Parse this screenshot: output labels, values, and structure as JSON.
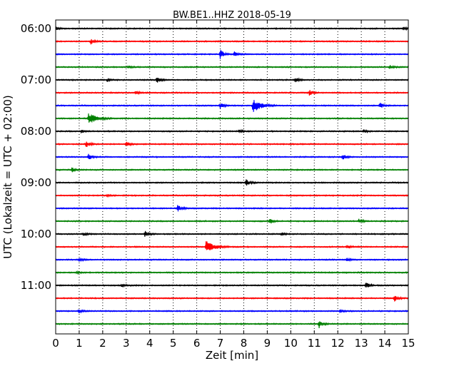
{
  "chart_data": {
    "type": "line",
    "title": "BW.BE1..HHZ 2018-05-19",
    "xlabel": "Zeit  [min]",
    "ylabel": "UTC (Lokalzeit = UTC + 02:00)",
    "xlim": [
      0,
      15
    ],
    "x_ticks": [
      "0",
      "1",
      "2",
      "3",
      "4",
      "5",
      "6",
      "7",
      "8",
      "9",
      "10",
      "11",
      "12",
      "13",
      "14",
      "15"
    ],
    "y_ticks": [
      "06:00",
      "07:00",
      "08:00",
      "09:00",
      "10:00",
      "11:00"
    ],
    "y_tick_rows": [
      0,
      4,
      8,
      12,
      16,
      20
    ],
    "grid": "x-dotted",
    "row_interval_minutes": 15,
    "row_colors": [
      "#000000",
      "#ff0000",
      "#0000ff",
      "#008000"
    ],
    "series": [
      {
        "values": [
          [
            0,
            0.3
          ],
          [
            14.8,
            0.3
          ]
        ]
      },
      {
        "values": [
          [
            1.5,
            0.5
          ]
        ]
      },
      {
        "values": [
          [
            7.0,
            1.0
          ],
          [
            7.6,
            0.5
          ]
        ]
      },
      {
        "values": [
          [
            3.1,
            0.3
          ],
          [
            14.2,
            0.4
          ]
        ]
      },
      {
        "values": [
          [
            2.2,
            0.3
          ],
          [
            4.3,
            0.6
          ],
          [
            10.2,
            0.6
          ]
        ]
      },
      {
        "values": [
          [
            3.4,
            0.3
          ],
          [
            10.8,
            0.6
          ]
        ]
      },
      {
        "values": [
          [
            7.0,
            0.6
          ],
          [
            8.4,
            1.5
          ],
          [
            13.8,
            0.6
          ]
        ]
      },
      {
        "values": [
          [
            1.4,
            1.2
          ]
        ]
      },
      {
        "values": [
          [
            1.1,
            0.3
          ],
          [
            7.8,
            0.3
          ],
          [
            13.1,
            0.3
          ]
        ]
      },
      {
        "values": [
          [
            1.3,
            0.7
          ],
          [
            3.0,
            0.5
          ]
        ]
      },
      {
        "values": [
          [
            1.4,
            0.7
          ],
          [
            12.2,
            0.6
          ]
        ]
      },
      {
        "values": [
          [
            0.7,
            0.5
          ]
        ]
      },
      {
        "values": [
          [
            8.1,
            0.7
          ]
        ]
      },
      {
        "values": [
          [
            2.2,
            0.2
          ]
        ]
      },
      {
        "values": [
          [
            5.2,
            0.8
          ]
        ]
      },
      {
        "values": [
          [
            9.1,
            0.6
          ],
          [
            12.9,
            0.4
          ]
        ]
      },
      {
        "values": [
          [
            1.2,
            0.3
          ],
          [
            3.8,
            0.6
          ],
          [
            9.6,
            0.3
          ]
        ]
      },
      {
        "values": [
          [
            6.4,
            1.5
          ],
          [
            12.4,
            0.4
          ]
        ]
      },
      {
        "values": [
          [
            1.0,
            0.3
          ],
          [
            12.4,
            0.3
          ]
        ]
      },
      {
        "values": [
          [
            0.9,
            0.3
          ]
        ]
      },
      {
        "values": [
          [
            2.8,
            0.3
          ],
          [
            13.2,
            0.7
          ]
        ]
      },
      {
        "values": [
          [
            14.4,
            0.7
          ]
        ]
      },
      {
        "values": [
          [
            1.0,
            0.4
          ],
          [
            12.1,
            0.3
          ]
        ]
      },
      {
        "values": [
          [
            11.2,
            0.8
          ]
        ]
      }
    ]
  }
}
